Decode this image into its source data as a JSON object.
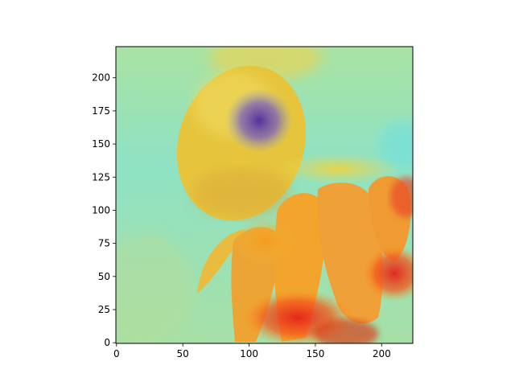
{
  "chart_data": {
    "type": "heatmap",
    "description_visible": "image with attention heatmap overlay",
    "x": {
      "ticks": [
        0,
        50,
        100,
        150,
        200
      ],
      "lim": [
        -0.5,
        223.5
      ]
    },
    "y": {
      "ticks": [
        0,
        25,
        50,
        75,
        100,
        125,
        150,
        175,
        200
      ],
      "lim": [
        223.5,
        -0.5
      ],
      "inverted": true
    },
    "colors": {
      "frame": "#000000",
      "cyan": "#7fe3d3",
      "green": "#a8e2a4",
      "yellow": "#f0d24a",
      "orange": "#f29a23",
      "red": "#e0301e",
      "purple": "#5d45a6"
    }
  }
}
